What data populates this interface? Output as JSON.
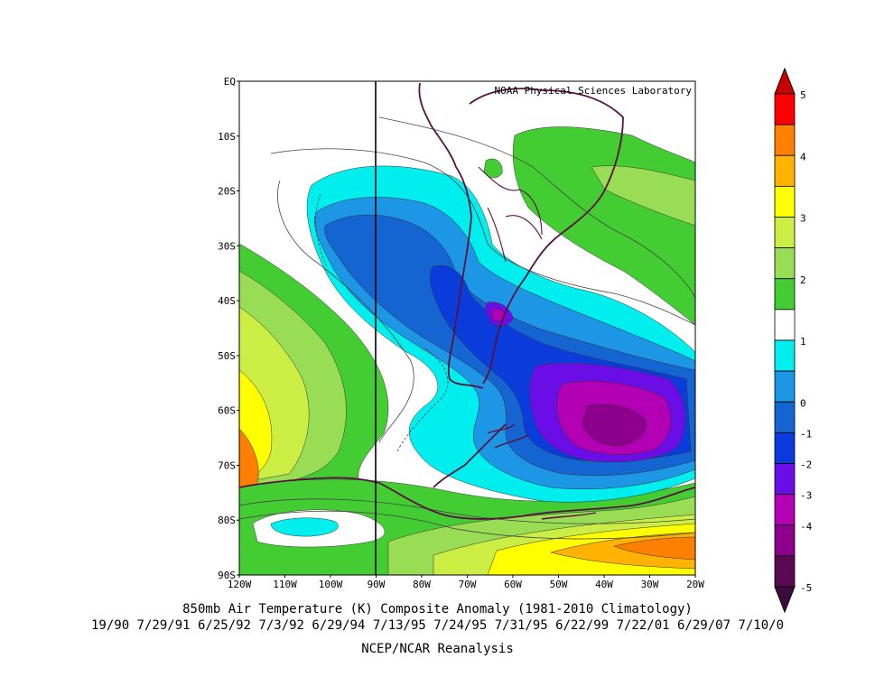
{
  "credit": "NOAA Physical Sciences Laboratory",
  "title": "850mb Air Temperature (K) Composite Anomaly (1981-2010 Climatology)",
  "dates": "19/90 7/29/91 6/25/92 7/3/92 6/29/94 7/13/95 7/24/95 7/31/95 6/22/99 7/22/01 6/29/07 7/10/0",
  "source": "NCEP/NCAR Reanalysis",
  "lat_labels": [
    "EQ",
    "10S",
    "20S",
    "30S",
    "40S",
    "50S",
    "60S",
    "70S",
    "80S",
    "90S"
  ],
  "lon_labels": [
    "120W",
    "110W",
    "100W",
    "90W",
    "80W",
    "70W",
    "60W",
    "50W",
    "40W",
    "30W",
    "20W"
  ],
  "colorbar": {
    "labels": [
      "5",
      "4",
      "3",
      "2",
      "1",
      "0",
      "-1",
      "-2",
      "-3",
      "-4",
      "-5"
    ],
    "colors": [
      "#ff0000",
      "#ff7f00",
      "#ffb300",
      "#ffff00",
      "#ccee44",
      "#99dd55",
      "#44cc33",
      "#ffffff",
      "#00eeee",
      "#1e96e6",
      "#1464d2",
      "#0a3cdc",
      "#6a0de6",
      "#b400b4",
      "#8c008c",
      "#5a0a50"
    ],
    "top_arrow_color": "#c80000",
    "bottom_arrow_color": "#3c0a3c"
  },
  "palette": {
    "neg1": "#00eeee",
    "neg1_5": "#1e96e6",
    "neg2": "#1464d2",
    "neg2_5": "#0a3cdc",
    "neg3": "#6a0de6",
    "neg3_5": "#b400b4",
    "neg4": "#8c008c",
    "pos1": "#44cc33",
    "pos1_5": "#99dd55",
    "pos2": "#ccee44",
    "pos3": "#ffff00",
    "pos4": "#ffb300",
    "pos5": "#ff7f00",
    "coast": "#5a1040"
  }
}
